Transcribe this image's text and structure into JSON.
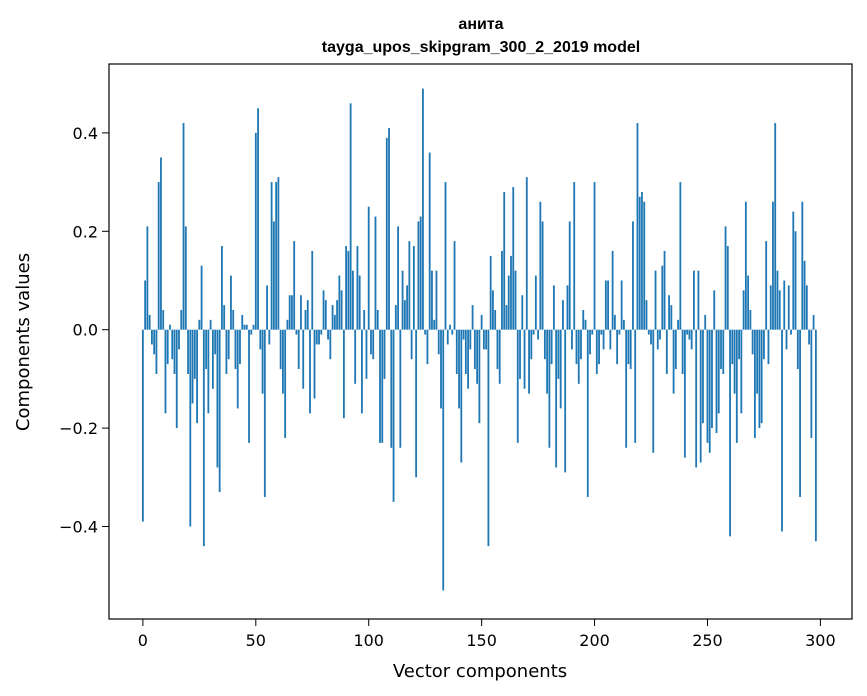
{
  "chart_data": {
    "type": "bar",
    "title": "анита",
    "subtitle": "tayga_upos_skipgram_300_2_2019 model",
    "xlabel": "Vector components",
    "ylabel": "Components values",
    "xlim": [
      -15,
      314
    ],
    "ylim": [
      -0.588,
      0.54
    ],
    "xticks": [
      0,
      50,
      100,
      150,
      200,
      250,
      300
    ],
    "xtick_labels": [
      "0",
      "50",
      "100",
      "150",
      "200",
      "250",
      "300"
    ],
    "yticks": [
      -0.4,
      -0.2,
      0.0,
      0.2,
      0.4
    ],
    "ytick_labels": [
      "−0.4",
      "−0.2",
      "0.0",
      "0.2",
      "0.4"
    ],
    "series": [
      {
        "name": "components",
        "color": "#1f77b4",
        "values": [
          -0.39,
          0.1,
          0.21,
          0.03,
          -0.03,
          -0.05,
          -0.09,
          0.3,
          0.35,
          0.04,
          -0.17,
          -0.07,
          0.01,
          -0.06,
          -0.09,
          -0.2,
          -0.04,
          0.04,
          0.42,
          0.21,
          -0.09,
          -0.4,
          -0.15,
          -0.1,
          -0.19,
          0.02,
          0.13,
          -0.44,
          -0.08,
          -0.17,
          0.02,
          -0.12,
          -0.05,
          -0.28,
          -0.33,
          0.17,
          0.05,
          -0.09,
          -0.06,
          0.11,
          0.04,
          -0.08,
          -0.16,
          -0.07,
          0.03,
          0.01,
          0.01,
          -0.23,
          -0.01,
          0.01,
          0.4,
          0.45,
          -0.04,
          -0.13,
          -0.34,
          0.09,
          -0.03,
          0.3,
          0.22,
          0.3,
          0.31,
          -0.08,
          -0.13,
          -0.22,
          0.02,
          0.07,
          0.07,
          0.18,
          -0.01,
          -0.08,
          0.07,
          -0.12,
          0.04,
          0.06,
          -0.17,
          0.16,
          -0.14,
          -0.03,
          -0.03,
          -0.01,
          0.08,
          0.06,
          -0.02,
          -0.06,
          0.05,
          0.03,
          0.06,
          0.11,
          0.08,
          -0.18,
          0.17,
          0.16,
          0.46,
          0.12,
          -0.11,
          0.17,
          0.11,
          -0.17,
          0.04,
          -0.1,
          0.25,
          -0.05,
          -0.06,
          0.23,
          0.04,
          -0.23,
          -0.23,
          -0.1,
          0.39,
          0.41,
          -0.24,
          -0.35,
          0.05,
          0.21,
          -0.24,
          0.12,
          0.06,
          0.09,
          0.18,
          -0.06,
          0.17,
          -0.3,
          0.22,
          0.23,
          0.49,
          -0.01,
          -0.07,
          0.36,
          0.12,
          0.02,
          0.12,
          -0.05,
          -0.16,
          -0.53,
          0.3,
          -0.03,
          0.01,
          -0.01,
          0.18,
          -0.09,
          -0.16,
          -0.27,
          -0.02,
          -0.09,
          -0.12,
          -0.04,
          0.05,
          -0.08,
          -0.11,
          -0.19,
          0.03,
          -0.04,
          -0.04,
          -0.44,
          0.15,
          0.08,
          0.04,
          -0.08,
          -0.11,
          0.16,
          0.28,
          0.05,
          0.11,
          0.15,
          0.29,
          0.12,
          -0.23,
          -0.1,
          0.07,
          -0.12,
          0.31,
          -0.13,
          -0.06,
          -0.01,
          0.11,
          -0.02,
          0.26,
          0.22,
          -0.06,
          -0.13,
          -0.24,
          -0.07,
          0.09,
          -0.28,
          -0.1,
          -0.16,
          0.06,
          -0.29,
          0.09,
          0.22,
          -0.04,
          0.3,
          -0.07,
          -0.11,
          -0.06,
          0.04,
          0.02,
          -0.34,
          -0.05,
          -0.01,
          0.3,
          -0.09,
          -0.07,
          -0.01,
          -0.04,
          0.1,
          0.1,
          -0.04,
          0.16,
          0.03,
          -0.07,
          -0.01,
          0.1,
          0.02,
          -0.24,
          -0.07,
          -0.08,
          0.22,
          -0.23,
          0.42,
          0.27,
          0.28,
          0.26,
          0.06,
          -0.01,
          -0.03,
          -0.25,
          0.12,
          -0.04,
          -0.02,
          0.13,
          0.16,
          -0.09,
          0.07,
          0.05,
          -0.13,
          -0.08,
          0.02,
          0.3,
          -0.09,
          -0.26,
          -0.01,
          -0.02,
          -0.04,
          0.12,
          -0.28,
          0.12,
          -0.27,
          -0.19,
          0.03,
          -0.23,
          -0.25,
          -0.2,
          0.08,
          -0.21,
          -0.17,
          -0.08,
          -0.09,
          0.21,
          0.17,
          -0.42,
          -0.07,
          -0.13,
          -0.23,
          -0.06,
          -0.17,
          0.08,
          0.26,
          0.11,
          0.04,
          -0.05,
          -0.22,
          -0.13,
          -0.2,
          -0.19,
          -0.06,
          0.18,
          -0.07,
          0.09,
          0.26,
          0.42,
          0.12,
          0.08,
          -0.41,
          0.1,
          -0.04,
          0.09,
          -0.01,
          0.24,
          0.2,
          -0.08,
          -0.34,
          0.26,
          0.14,
          0.09,
          -0.03,
          -0.22,
          0.03,
          -0.43
        ]
      }
    ]
  }
}
